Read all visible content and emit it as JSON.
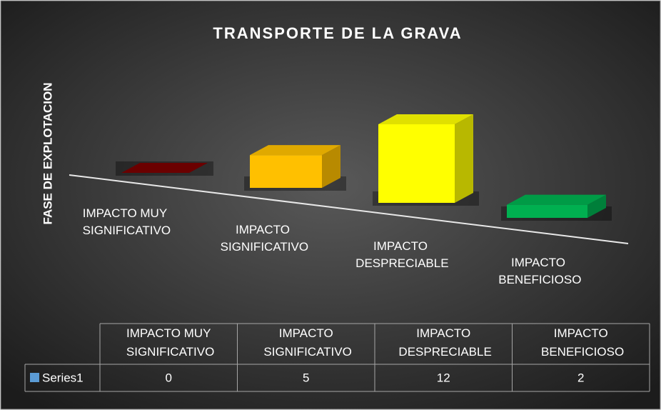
{
  "chart_data": {
    "type": "bar3d",
    "title": "TRANSPORTE DE LA GRAVA",
    "y_label": "FASE DE EXPLOTACION",
    "categories": [
      "IMPACTO MUY SIGNIFICATIVO",
      "IMPACTO SIGNIFICATIVO",
      "IMPACTO DESPRECIABLE",
      "IMPACTO BENEFICIOSO"
    ],
    "series": [
      {
        "name": "Series1",
        "color": "#5b9bd5",
        "values": [
          0,
          5,
          12,
          2
        ],
        "point_colors": [
          "#7a0000",
          "#ffc000",
          "#ffff00",
          "#00b050"
        ]
      }
    ],
    "data_table": true
  }
}
